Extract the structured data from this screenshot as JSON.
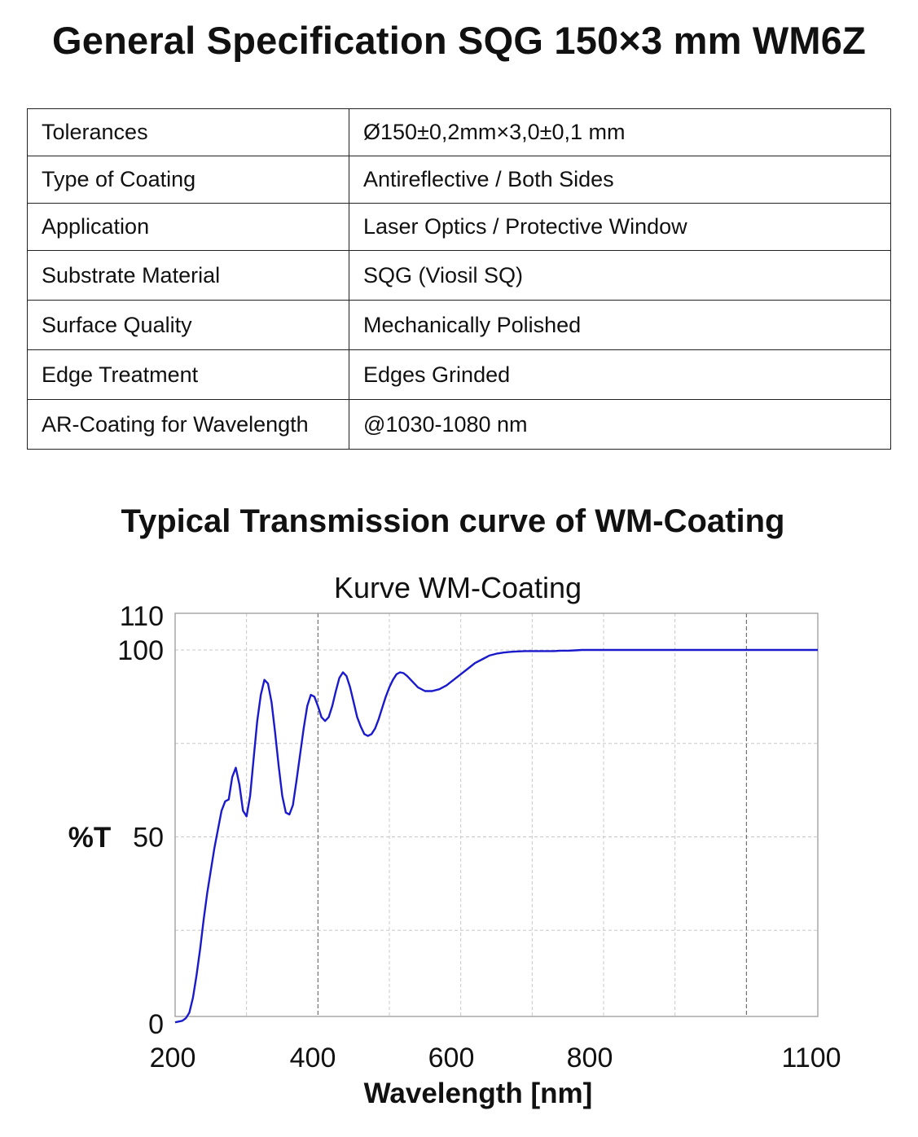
{
  "document": {
    "title": "General Specification SQG 150×3 mm WM6Z",
    "spec_table": [
      {
        "label": "Tolerances",
        "value": "Ø150±0,2mm×3,0±0,1 mm"
      },
      {
        "label": "Type of Coating",
        "value": "Antireflective / Both Sides"
      },
      {
        "label": "Application",
        "value": "Laser Optics / Protective Window"
      },
      {
        "label": "Substrate Material",
        "value": "SQG (Viosil SQ)"
      },
      {
        "label": "Surface Quality",
        "value": "Mechanically Polished"
      },
      {
        "label": "Edge Treatment",
        "value": "Edges Grinded"
      },
      {
        "label": "AR-Coating for Wavelength",
        "value": "@1030-1080 nm"
      }
    ],
    "chart_heading": "Typical Transmission curve of WM-Coating"
  },
  "chart_data": {
    "type": "line",
    "title": "Kurve WM-Coating",
    "xlabel": "Wavelength [nm]",
    "ylabel": "%T",
    "xlim": [
      200,
      1100
    ],
    "ylim": [
      0,
      110
    ],
    "x_ticks": [
      "200",
      "400",
      "600",
      "800",
      "1100"
    ],
    "y_ticks": [
      "0",
      "50",
      "100",
      "110"
    ],
    "grid": true,
    "line_color": "#1a1acc",
    "series": [
      {
        "x": [
          200,
          210,
          215,
          220,
          225,
          230,
          235,
          240,
          245,
          250,
          255,
          260,
          265,
          270,
          275,
          280,
          285,
          290,
          295,
          300,
          305,
          310,
          315,
          320,
          325,
          330,
          335,
          340,
          345,
          350,
          355,
          360,
          365,
          370,
          375,
          380,
          385,
          390,
          395,
          400,
          405,
          410,
          415,
          420,
          425,
          430,
          435,
          440,
          445,
          450,
          455,
          460,
          465,
          470,
          475,
          480,
          485,
          490,
          495,
          500,
          505,
          510,
          515,
          520,
          525,
          530,
          535,
          540,
          550,
          560,
          570,
          580,
          590,
          600,
          610,
          620,
          630,
          640,
          650,
          660,
          670,
          680,
          690,
          700,
          710,
          720,
          730,
          740,
          750,
          760,
          770,
          780,
          790,
          800,
          810,
          820,
          830,
          840,
          850,
          860,
          870,
          880,
          900,
          920,
          950,
          980,
          1000,
          1030,
          1060,
          1080,
          1100
        ],
        "y": [
          0.4,
          0.8,
          1.5,
          3,
          7,
          13,
          20,
          28,
          35,
          41,
          47,
          52,
          57,
          59.5,
          60,
          66,
          68.5,
          64,
          57,
          55.5,
          61,
          71,
          81,
          88,
          92,
          91,
          86,
          78,
          69,
          61,
          56.5,
          56,
          58.5,
          65,
          72,
          79,
          85,
          88,
          87.5,
          85,
          82,
          81,
          82,
          85,
          89,
          92.5,
          94,
          93,
          90,
          86,
          82,
          79.5,
          77.5,
          77,
          77.5,
          79,
          81.5,
          84.5,
          87.5,
          90,
          92,
          93.5,
          94,
          93.8,
          93,
          92,
          91,
          90,
          89,
          89,
          89.5,
          90.5,
          92,
          93.5,
          95,
          96.5,
          97.5,
          98.5,
          99,
          99.3,
          99.5,
          99.6,
          99.7,
          99.7,
          99.7,
          99.7,
          99.7,
          99.8,
          99.8,
          99.9,
          100,
          100,
          100,
          100,
          100,
          100,
          100,
          100,
          100,
          100,
          100,
          100,
          100,
          100,
          100,
          100,
          100,
          100,
          100,
          100,
          100
        ]
      }
    ]
  }
}
